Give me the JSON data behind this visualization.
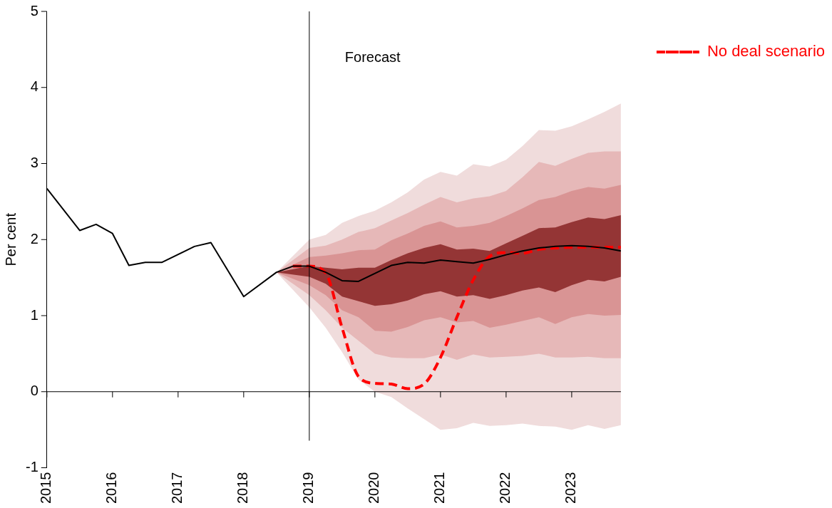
{
  "chart_data": {
    "type": "line",
    "ylabel": "Per cent",
    "xlim": [
      2015,
      2023.75
    ],
    "xticks": [
      2015,
      2016,
      2017,
      2018,
      2019,
      2020,
      2021,
      2022,
      2023
    ],
    "ylim": [
      -1,
      5
    ],
    "yticks": [
      -1,
      0,
      1,
      2,
      3,
      4,
      5
    ],
    "grid": false,
    "legend": "right",
    "marker": "none",
    "annotations": [
      "Forecast"
    ],
    "ref_lines": [
      {
        "axis": "x",
        "value": 2019,
        "color": "#000000"
      },
      {
        "axis": "y",
        "value": 0,
        "color": "#000000"
      }
    ],
    "series": [
      {
        "color": "#f0dcdc",
        "x": [
          2018.5,
          2019,
          2019.25,
          2019.5,
          2019.75,
          2020,
          2020.25,
          2020.5,
          2020.75,
          2021,
          2021.25,
          2021.5,
          2021.75,
          2022,
          2022.25,
          2022.5,
          2022.75,
          2023,
          2023.25,
          2023.5,
          2023.75
        ],
        "values": [
          null,
          null,
          null,
          null,
          null,
          null,
          null,
          null,
          null,
          null,
          null,
          null,
          null,
          null,
          null,
          null,
          null,
          null,
          null,
          null,
          null
        ],
        "lower": [
          1.57,
          1.11,
          0.84,
          0.52,
          0.16,
          0.0,
          -0.07,
          -0.22,
          -0.36,
          -0.5,
          -0.48,
          -0.41,
          -0.45,
          -0.44,
          -0.42,
          -0.45,
          -0.46,
          -0.5,
          -0.44,
          -0.49,
          -0.44
        ],
        "upper": [
          1.57,
          2.0,
          2.06,
          2.22,
          2.31,
          2.38,
          2.49,
          2.62,
          2.79,
          2.89,
          2.84,
          2.99,
          2.96,
          3.05,
          3.23,
          3.44,
          3.43,
          3.49,
          3.58,
          3.68,
          3.79
        ]
      },
      {
        "color": "#e6b8b8",
        "x": [
          2018.5,
          2019,
          2019.25,
          2019.5,
          2019.75,
          2020,
          2020.25,
          2020.5,
          2020.75,
          2021,
          2021.25,
          2021.5,
          2021.75,
          2022,
          2022.25,
          2022.5,
          2022.75,
          2023,
          2023.25,
          2023.5,
          2023.75
        ],
        "values": [
          null,
          null,
          null,
          null,
          null,
          null,
          null,
          null,
          null,
          null,
          null,
          null,
          null,
          null,
          null,
          null,
          null,
          null,
          null,
          null,
          null
        ],
        "lower": [
          1.57,
          1.27,
          1.07,
          0.84,
          0.67,
          0.5,
          0.45,
          0.44,
          0.44,
          0.49,
          0.42,
          0.49,
          0.45,
          0.46,
          0.47,
          0.5,
          0.45,
          0.45,
          0.46,
          0.44,
          0.44
        ],
        "upper": [
          1.57,
          1.89,
          1.92,
          2.0,
          2.1,
          2.15,
          2.25,
          2.35,
          2.46,
          2.56,
          2.49,
          2.54,
          2.57,
          2.64,
          2.82,
          3.02,
          2.97,
          3.06,
          3.14,
          3.16,
          3.16
        ]
      },
      {
        "color": "#d99494",
        "x": [
          2018.5,
          2019,
          2019.25,
          2019.5,
          2019.75,
          2020,
          2020.25,
          2020.5,
          2020.75,
          2021,
          2021.25,
          2021.5,
          2021.75,
          2022,
          2022.25,
          2022.5,
          2022.75,
          2023,
          2023.25,
          2023.5,
          2023.75
        ],
        "values": [
          null,
          null,
          null,
          null,
          null,
          null,
          null,
          null,
          null,
          null,
          null,
          null,
          null,
          null,
          null,
          null,
          null,
          null,
          null,
          null,
          null
        ],
        "lower": [
          1.57,
          1.4,
          1.27,
          1.07,
          0.98,
          0.8,
          0.79,
          0.85,
          0.94,
          0.98,
          0.91,
          0.93,
          0.84,
          0.88,
          0.93,
          0.98,
          0.89,
          0.98,
          1.02,
          1.0,
          1.01
        ],
        "upper": [
          1.57,
          1.77,
          1.79,
          1.82,
          1.86,
          1.87,
          1.99,
          2.08,
          2.18,
          2.24,
          2.16,
          2.18,
          2.22,
          2.31,
          2.41,
          2.52,
          2.56,
          2.64,
          2.69,
          2.67,
          2.72
        ]
      },
      {
        "color": "#943535",
        "x": [
          2018.5,
          2019,
          2019.25,
          2019.5,
          2019.75,
          2020,
          2020.25,
          2020.5,
          2020.75,
          2021,
          2021.25,
          2021.5,
          2021.75,
          2022,
          2022.25,
          2022.5,
          2022.75,
          2023,
          2023.25,
          2023.5,
          2023.75
        ],
        "values": [
          null,
          null,
          null,
          null,
          null,
          null,
          null,
          null,
          null,
          null,
          null,
          null,
          null,
          null,
          null,
          null,
          null,
          null,
          null,
          null,
          null
        ],
        "lower": [
          1.57,
          1.51,
          1.42,
          1.25,
          1.19,
          1.13,
          1.15,
          1.2,
          1.28,
          1.32,
          1.25,
          1.27,
          1.22,
          1.27,
          1.33,
          1.37,
          1.31,
          1.4,
          1.47,
          1.45,
          1.51
        ],
        "upper": [
          1.57,
          1.65,
          1.63,
          1.61,
          1.63,
          1.63,
          1.73,
          1.82,
          1.89,
          1.94,
          1.87,
          1.88,
          1.85,
          1.95,
          2.05,
          2.15,
          2.16,
          2.23,
          2.29,
          2.27,
          2.32
        ]
      },
      {
        "type": "line",
        "color": "#000000",
        "x": [
          2015,
          2015.5,
          2015.75,
          2016,
          2016.25,
          2016.5,
          2016.75,
          2017.25,
          2017.5,
          2018,
          2018.5,
          2018.75,
          2019,
          2019.25,
          2019.5,
          2019.75,
          2020.25,
          2020.5,
          2020.75,
          2021,
          2021.25,
          2021.5,
          2021.75,
          2022,
          2022.25,
          2022.5,
          2022.75,
          2023,
          2023.25,
          2023.5,
          2023.75
        ],
        "values": [
          2.67,
          2.12,
          2.2,
          2.08,
          1.66,
          1.7,
          1.7,
          1.91,
          1.96,
          1.25,
          1.57,
          1.65,
          1.65,
          1.57,
          1.46,
          1.45,
          1.66,
          1.7,
          1.69,
          1.73,
          1.71,
          1.69,
          1.74,
          1.8,
          1.85,
          1.89,
          1.91,
          1.92,
          1.91,
          1.89,
          1.85
        ]
      },
      {
        "type": "line",
        "name": "No deal scenario",
        "color": "#ff0000",
        "line_style": "dashed",
        "x": [
          2018.75,
          2019,
          2019.25,
          2019.5,
          2019.75,
          2020,
          2020.25,
          2020.5,
          2020.75,
          2021,
          2021.25,
          2021.5,
          2021.75,
          2022,
          2022.25,
          2022.5,
          2022.75,
          2023,
          2023.25,
          2023.5,
          2023.75
        ],
        "values": [
          1.65,
          1.65,
          1.56,
          0.84,
          0.2,
          0.11,
          0.1,
          0.04,
          0.1,
          0.45,
          0.98,
          1.47,
          1.78,
          1.83,
          1.82,
          1.87,
          1.89,
          1.9,
          1.9,
          1.9,
          1.9
        ]
      }
    ]
  }
}
